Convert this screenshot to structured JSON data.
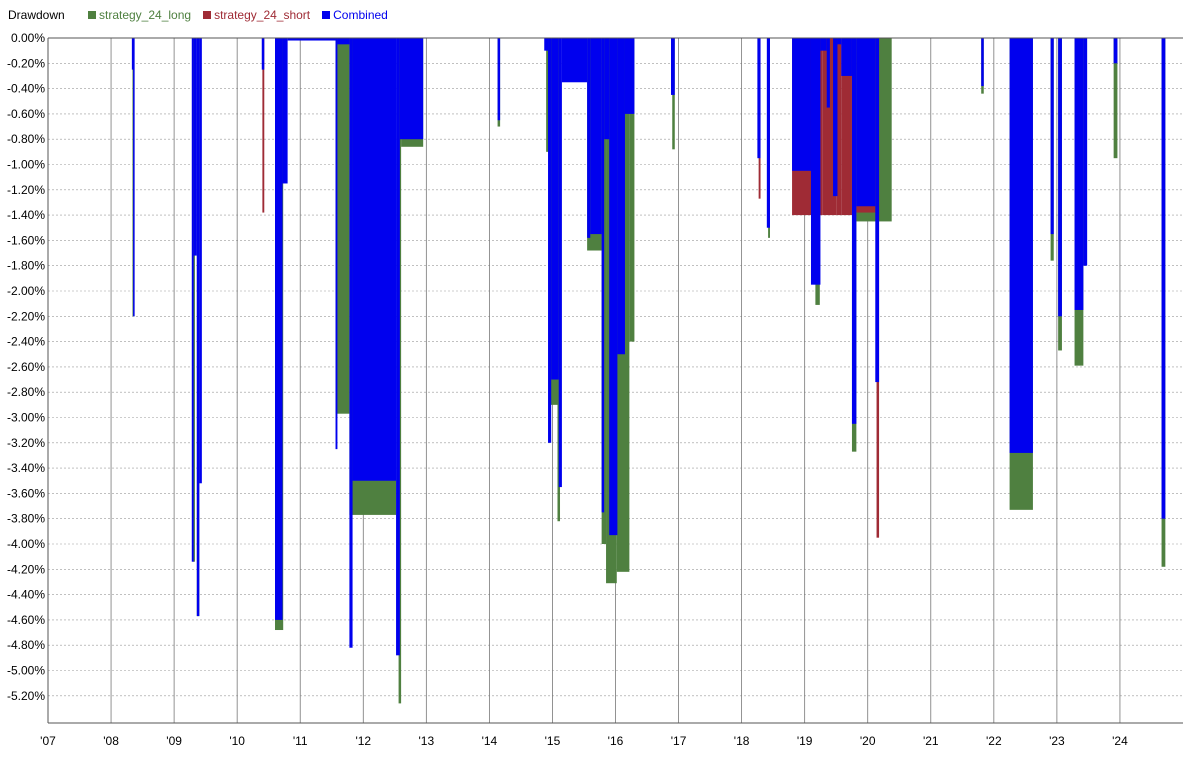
{
  "chart_data": {
    "type": "area",
    "title": "Drawdown",
    "ylim": [
      -5.4,
      0
    ],
    "y_ticks": [
      "0.00%",
      "-0.20%",
      "-0.40%",
      "-0.60%",
      "-0.80%",
      "-1.00%",
      "-1.20%",
      "-1.40%",
      "-1.60%",
      "-1.80%",
      "-2.00%",
      "-2.20%",
      "-2.40%",
      "-2.60%",
      "-2.80%",
      "-3.00%",
      "-3.20%",
      "-3.40%",
      "-3.60%",
      "-3.80%",
      "-4.00%",
      "-4.20%",
      "-4.40%",
      "-4.60%",
      "-4.80%",
      "-5.00%",
      "-5.20%"
    ],
    "y_tick_values": [
      0,
      -0.2,
      -0.4,
      -0.6,
      -0.8,
      -1.0,
      -1.2,
      -1.4,
      -1.6,
      -1.8,
      -2.0,
      -2.2,
      -2.4,
      -2.6,
      -2.8,
      -3.0,
      -3.2,
      -3.4,
      -3.6,
      -3.8,
      -4.0,
      -4.2,
      -4.4,
      -4.6,
      -4.8,
      -5.0,
      -5.2
    ],
    "xlim": [
      2007.0,
      2025.0
    ],
    "x_ticks": [
      "'07",
      "'08",
      "'09",
      "'10",
      "'11",
      "'12",
      "'13",
      "'14",
      "'15",
      "'16",
      "'17",
      "'18",
      "'19",
      "'20",
      "'21",
      "'22",
      "'23",
      "'24"
    ],
    "x_tick_values": [
      2007.0,
      2008.0,
      2009.0,
      2010.0,
      2011.0,
      2012.0,
      2013.0,
      2014.0,
      2015.0,
      2016.0,
      2017.0,
      2018.0,
      2019.0,
      2020.0,
      2021.0,
      2022.0,
      2023.0,
      2024.0
    ],
    "grid": true,
    "legend_position": "top-left",
    "series": [
      {
        "name": "strategy_24_long",
        "color": "#4f8040",
        "spans": [
          [
            2008.34,
            2008.37,
            -2.2
          ],
          [
            2009.3,
            2009.33,
            -4.14
          ],
          [
            2009.36,
            2009.4,
            -4.57
          ],
          [
            2010.6,
            2010.73,
            -4.68
          ],
          [
            2011.56,
            2011.78,
            -2.97
          ],
          [
            2011.78,
            2012.52,
            -3.77
          ],
          [
            2012.56,
            2012.6,
            -5.26
          ],
          [
            2012.6,
            2012.95,
            -0.86
          ],
          [
            2014.13,
            2014.17,
            -0.7
          ],
          [
            2014.9,
            2014.95,
            -0.9
          ],
          [
            2014.95,
            2015.08,
            -2.9
          ],
          [
            2015.08,
            2015.12,
            -3.82
          ],
          [
            2015.55,
            2015.78,
            -1.68
          ],
          [
            2015.78,
            2015.85,
            -4.0
          ],
          [
            2015.85,
            2016.02,
            -4.31
          ],
          [
            2016.02,
            2016.22,
            -4.22
          ],
          [
            2016.22,
            2016.3,
            -2.4
          ],
          [
            2016.9,
            2016.94,
            -0.88
          ],
          [
            2018.42,
            2018.45,
            -1.58
          ],
          [
            2019.17,
            2019.24,
            -2.11
          ],
          [
            2019.75,
            2019.82,
            -3.27
          ],
          [
            2019.82,
            2020.16,
            -1.45
          ],
          [
            2020.16,
            2020.38,
            -1.45
          ],
          [
            2021.8,
            2021.84,
            -0.44
          ],
          [
            2022.25,
            2022.62,
            -3.73
          ],
          [
            2022.9,
            2022.95,
            -1.76
          ],
          [
            2023.02,
            2023.08,
            -2.47
          ],
          [
            2023.28,
            2023.42,
            -2.59
          ],
          [
            2023.9,
            2023.96,
            -0.95
          ],
          [
            2024.66,
            2024.72,
            -4.18
          ]
        ]
      },
      {
        "name": "strategy_24_short",
        "color": "#9f2b35",
        "spans": [
          [
            2010.4,
            2010.43,
            -1.38
          ],
          [
            2018.27,
            2018.3,
            -1.27
          ],
          [
            2018.8,
            2019.28,
            -1.4
          ],
          [
            2019.28,
            2019.5,
            -1.4
          ],
          [
            2019.5,
            2019.58,
            -1.4
          ],
          [
            2019.58,
            2019.75,
            -1.4
          ],
          [
            2019.82,
            2020.12,
            -1.38
          ],
          [
            2020.14,
            2020.18,
            -3.95
          ]
        ]
      },
      {
        "name": "Combined",
        "color": "#0000ee",
        "spans": [
          [
            2008.33,
            2008.35,
            -0.25
          ],
          [
            2008.35,
            2008.37,
            -2.2
          ],
          [
            2009.28,
            2009.31,
            -4.14
          ],
          [
            2009.31,
            2009.36,
            -1.72
          ],
          [
            2009.36,
            2009.4,
            -4.57
          ],
          [
            2009.4,
            2009.44,
            -3.52
          ],
          [
            2010.39,
            2010.43,
            -0.25
          ],
          [
            2010.6,
            2010.72,
            -4.6
          ],
          [
            2010.72,
            2010.8,
            -1.15
          ],
          [
            2010.8,
            2011.56,
            -0.02
          ],
          [
            2011.56,
            2011.59,
            -3.25
          ],
          [
            2011.59,
            2011.78,
            -0.05
          ],
          [
            2011.78,
            2011.83,
            -4.82
          ],
          [
            2011.83,
            2012.52,
            -3.5
          ],
          [
            2012.52,
            2012.58,
            -4.88
          ],
          [
            2012.58,
            2012.95,
            -0.8
          ],
          [
            2014.13,
            2014.17,
            -0.65
          ],
          [
            2014.87,
            2014.93,
            -0.1
          ],
          [
            2014.93,
            2014.98,
            -3.2
          ],
          [
            2014.98,
            2015.1,
            -2.7
          ],
          [
            2015.1,
            2015.15,
            -3.55
          ],
          [
            2015.15,
            2015.55,
            -0.35
          ],
          [
            2015.55,
            2015.6,
            -1.58
          ],
          [
            2015.6,
            2015.78,
            -1.55
          ],
          [
            2015.78,
            2015.82,
            -3.75
          ],
          [
            2015.82,
            2015.9,
            -0.8
          ],
          [
            2015.9,
            2016.03,
            -3.93
          ],
          [
            2016.03,
            2016.15,
            -2.5
          ],
          [
            2016.15,
            2016.3,
            -0.6
          ],
          [
            2016.88,
            2016.94,
            -0.45
          ],
          [
            2018.25,
            2018.3,
            -0.95
          ],
          [
            2018.4,
            2018.45,
            -1.5
          ],
          [
            2018.8,
            2019.1,
            -1.05
          ],
          [
            2019.1,
            2019.25,
            -1.95
          ],
          [
            2019.25,
            2019.35,
            -0.1
          ],
          [
            2019.35,
            2019.4,
            -0.55
          ],
          [
            2019.45,
            2019.52,
            -1.25
          ],
          [
            2019.52,
            2019.58,
            -0.05
          ],
          [
            2019.58,
            2019.75,
            -0.3
          ],
          [
            2019.75,
            2019.82,
            -3.05
          ],
          [
            2019.82,
            2020.12,
            -1.33
          ],
          [
            2020.12,
            2020.18,
            -2.72
          ],
          [
            2021.8,
            2021.84,
            -0.38
          ],
          [
            2022.25,
            2022.62,
            -3.28
          ],
          [
            2022.9,
            2022.95,
            -1.55
          ],
          [
            2023.02,
            2023.08,
            -2.2
          ],
          [
            2023.28,
            2023.42,
            -2.15
          ],
          [
            2023.42,
            2023.48,
            -1.8
          ],
          [
            2023.9,
            2023.96,
            -0.2
          ],
          [
            2024.66,
            2024.72,
            -3.8
          ]
        ]
      }
    ]
  }
}
